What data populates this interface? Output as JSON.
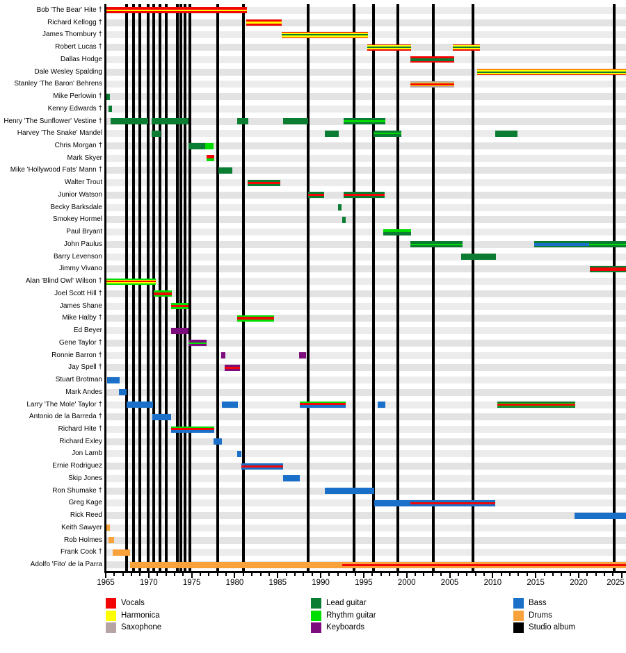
{
  "chart_data": {
    "type": "timeline",
    "x_axis": {
      "start": 1965,
      "end": 2025.5,
      "first_label": 1965,
      "last_label": 2025,
      "label_interval": 5,
      "minor_tick_interval": 1
    },
    "roles": {
      "vocals": {
        "label": "Vocals",
        "color": "#f10505"
      },
      "harmonica": {
        "label": "Harmonica",
        "color": "#ffff00"
      },
      "saxophone": {
        "label": "Saxophone",
        "color": "#b7a4a4"
      },
      "lead_guitar": {
        "label": "Lead guitar",
        "color": "#0b7d33"
      },
      "rhythm_guitar": {
        "label": "Rhythm guitar",
        "color": "#00dd00"
      },
      "keyboards": {
        "label": "Keyboards",
        "color": "#7d0c7d"
      },
      "bass": {
        "label": "Bass",
        "color": "#1a70c8"
      },
      "drums": {
        "label": "Drums",
        "color": "#f9a13a"
      },
      "studio_album": {
        "label": "Studio album",
        "color": "#000000"
      }
    },
    "legend": {
      "columns": [
        [
          "vocals",
          "harmonica",
          "saxophone"
        ],
        [
          "lead_guitar",
          "rhythm_guitar",
          "keyboards"
        ],
        [
          "bass",
          "drums",
          "studio_album"
        ]
      ]
    },
    "albums": [
      1967.4,
      1968.2,
      1969.0,
      1969.9,
      1970.6,
      1971.3,
      1972.0,
      1973.3,
      1973.7,
      1974.2,
      1974.8,
      1978.0,
      1981.0,
      1988.5,
      1993.9,
      1996.1,
      1999.0,
      2003.1,
      2007.7,
      2024.1
    ],
    "members": [
      {
        "name": "Bob 'The Bear' Hite †",
        "bars": [
          {
            "start": 1965.0,
            "end": 1981.4,
            "roles": [
              "vocals",
              "harmonica",
              "vocals"
            ],
            "w": [
              1.2,
              1,
              1.2
            ]
          }
        ]
      },
      {
        "name": "Richard Kellogg †",
        "bars": [
          {
            "start": 1981.3,
            "end": 1985.5,
            "roles": [
              "vocals",
              "harmonica",
              "vocals"
            ],
            "w": [
              1,
              1.2,
              1
            ]
          }
        ]
      },
      {
        "name": "James Thornbury †",
        "bars": [
          {
            "start": 1985.5,
            "end": 1995.5,
            "roles": [
              "vocals",
              "harmonica",
              "lead_guitar",
              "harmonica",
              "vocals"
            ],
            "w": [
              0.8,
              1.6,
              1.4,
              1.6,
              0.8
            ]
          }
        ]
      },
      {
        "name": "Robert Lucas †",
        "bars": [
          {
            "start": 1995.4,
            "end": 2000.5,
            "roles": [
              "vocals",
              "harmonica",
              "lead_guitar",
              "harmonica",
              "vocals"
            ],
            "w": [
              0.8,
              1.6,
              1.4,
              1.6,
              0.8
            ]
          },
          {
            "start": 2005.4,
            "end": 2008.5,
            "roles": [
              "vocals",
              "harmonica",
              "lead_guitar",
              "harmonica",
              "vocals"
            ],
            "w": [
              0.8,
              1.6,
              1.4,
              1.6,
              0.8
            ]
          }
        ]
      },
      {
        "name": "Dallas Hodge",
        "bars": [
          {
            "start": 2000.4,
            "end": 2005.5,
            "roles": [
              "vocals",
              "lead_guitar",
              "vocals"
            ],
            "w": [
              0.9,
              1.8,
              0.9
            ]
          }
        ]
      },
      {
        "name": "Dale Wesley Spalding",
        "bars": [
          {
            "start": 2008.2,
            "end": 2025.5,
            "roles": [
              "vocals",
              "harmonica",
              "lead_guitar",
              "harmonica",
              "vocals"
            ],
            "w": [
              0.8,
              1.6,
              1.4,
              1.6,
              0.8
            ]
          }
        ]
      },
      {
        "name": "Stanley 'The Baron' Behrens",
        "bars": [
          {
            "start": 2000.4,
            "end": 2005.5,
            "roles": [
              "saxophone",
              "harmonica",
              "vocals",
              "harmonica",
              "saxophone"
            ],
            "w": [
              1,
              0.9,
              1.4,
              0.9,
              1
            ]
          }
        ]
      },
      {
        "name": "Mike Perlowin †",
        "bars": [
          {
            "start": 1965.0,
            "end": 1965.45,
            "roles": [
              "lead_guitar"
            ]
          }
        ]
      },
      {
        "name": "Kenny Edwards †",
        "bars": [
          {
            "start": 1965.3,
            "end": 1965.75,
            "roles": [
              "lead_guitar"
            ]
          }
        ]
      },
      {
        "name": "Henry 'The Sunflower' Vestine †",
        "bars": [
          {
            "start": 1965.6,
            "end": 1969.9,
            "roles": [
              "lead_guitar"
            ]
          },
          {
            "start": 1970.3,
            "end": 1974.6,
            "roles": [
              "lead_guitar"
            ]
          },
          {
            "start": 1980.3,
            "end": 1981.6,
            "roles": [
              "lead_guitar"
            ]
          },
          {
            "start": 1985.6,
            "end": 1988.5,
            "roles": [
              "lead_guitar"
            ]
          },
          {
            "start": 1992.7,
            "end": 1997.5,
            "roles": [
              "lead_guitar",
              "rhythm_guitar",
              "lead_guitar"
            ],
            "w": [
              1.3,
              0.8,
              1.3
            ]
          }
        ]
      },
      {
        "name": "Harvey 'The Snake' Mandel",
        "bars": [
          {
            "start": 1970.3,
            "end": 1971.4,
            "roles": [
              "lead_guitar"
            ]
          },
          {
            "start": 1990.5,
            "end": 1992.1,
            "roles": [
              "lead_guitar"
            ]
          },
          {
            "start": 1996.1,
            "end": 1999.4,
            "roles": [
              "lead_guitar",
              "rhythm_guitar",
              "lead_guitar"
            ],
            "w": [
              1.3,
              0.8,
              1.3
            ]
          },
          {
            "start": 2010.3,
            "end": 2012.9,
            "roles": [
              "lead_guitar"
            ]
          }
        ]
      },
      {
        "name": "Chris Morgan †",
        "bars": [
          {
            "start": 1974.6,
            "end": 1976.6,
            "roles": [
              "lead_guitar"
            ]
          },
          {
            "start": 1976.6,
            "end": 1977.5,
            "roles": [
              "rhythm_guitar"
            ]
          }
        ]
      },
      {
        "name": "Mark Skyer",
        "bars": [
          {
            "start": 1976.7,
            "end": 1977.6,
            "roles": [
              "vocals",
              "rhythm_guitar"
            ]
          }
        ]
      },
      {
        "name": "Mike 'Hollywood Fats' Mann †",
        "bars": [
          {
            "start": 1978.1,
            "end": 1979.7,
            "roles": [
              "lead_guitar"
            ]
          }
        ]
      },
      {
        "name": "Walter Trout",
        "bars": [
          {
            "start": 1981.5,
            "end": 1985.3,
            "roles": [
              "lead_guitar",
              "vocals",
              "lead_guitar"
            ]
          }
        ]
      },
      {
        "name": "Junior Watson",
        "bars": [
          {
            "start": 1988.5,
            "end": 1990.4,
            "roles": [
              "lead_guitar",
              "vocals",
              "lead_guitar"
            ]
          },
          {
            "start": 1992.7,
            "end": 1997.4,
            "roles": [
              "lead_guitar",
              "vocals",
              "lead_guitar"
            ]
          }
        ]
      },
      {
        "name": "Becky Barksdale",
        "bars": [
          {
            "start": 1992.0,
            "end": 1992.45,
            "roles": [
              "lead_guitar"
            ]
          }
        ]
      },
      {
        "name": "Smokey Hormel",
        "bars": [
          {
            "start": 1992.5,
            "end": 1992.9,
            "roles": [
              "lead_guitar"
            ]
          }
        ]
      },
      {
        "name": "Paul Bryant",
        "bars": [
          {
            "start": 1997.3,
            "end": 2000.5,
            "roles": [
              "rhythm_guitar",
              "lead_guitar"
            ],
            "w": [
              1,
              1.3
            ]
          }
        ]
      },
      {
        "name": "John Paulus",
        "bars": [
          {
            "start": 2000.4,
            "end": 2006.5,
            "roles": [
              "lead_guitar",
              "rhythm_guitar",
              "lead_guitar"
            ],
            "w": [
              1.3,
              0.8,
              1.3
            ]
          },
          {
            "start": 2014.8,
            "end": 2021.2,
            "roles": [
              "lead_guitar",
              "bass",
              "lead_guitar"
            ],
            "w": [
              1,
              1.1,
              1
            ]
          },
          {
            "start": 2021.2,
            "end": 2025.5,
            "roles": [
              "lead_guitar",
              "rhythm_guitar",
              "lead_guitar"
            ],
            "w": [
              1.3,
              0.8,
              1.3
            ]
          }
        ]
      },
      {
        "name": "Barry Levenson",
        "bars": [
          {
            "start": 2006.3,
            "end": 2010.4,
            "roles": [
              "lead_guitar"
            ]
          }
        ]
      },
      {
        "name": "Jimmy Vivano",
        "bars": [
          {
            "start": 2021.3,
            "end": 2025.5,
            "roles": [
              "lead_guitar",
              "vocals",
              "lead_guitar"
            ],
            "w": [
              0.8,
              1.8,
              0.8
            ]
          }
        ]
      },
      {
        "name": "Alan 'Blind Owl' Wilson †",
        "bars": [
          {
            "start": 1965.0,
            "end": 1970.8,
            "roles": [
              "rhythm_guitar",
              "harmonica",
              "vocals",
              "harmonica",
              "rhythm_guitar"
            ],
            "w": [
              1.4,
              0.9,
              1.6,
              0.9,
              1.4
            ]
          }
        ]
      },
      {
        "name": "Joel Scott Hill †",
        "bars": [
          {
            "start": 1970.6,
            "end": 1972.7,
            "roles": [
              "rhythm_guitar",
              "vocals",
              "rhythm_guitar"
            ],
            "w": [
              0.9,
              1.3,
              0.9
            ]
          }
        ]
      },
      {
        "name": "James Shane",
        "bars": [
          {
            "start": 1972.6,
            "end": 1974.6,
            "roles": [
              "rhythm_guitar",
              "vocals",
              "rhythm_guitar"
            ],
            "w": [
              0.9,
              1.3,
              0.9
            ]
          }
        ]
      },
      {
        "name": "Mike Halby †",
        "bars": [
          {
            "start": 1980.3,
            "end": 1984.6,
            "roles": [
              "rhythm_guitar",
              "vocals",
              "rhythm_guitar"
            ],
            "w": [
              0.9,
              1.3,
              0.9
            ]
          }
        ]
      },
      {
        "name": "Ed Beyer",
        "bars": [
          {
            "start": 1972.6,
            "end": 1974.6,
            "roles": [
              "keyboards"
            ]
          }
        ]
      },
      {
        "name": "Gene Taylor †",
        "bars": [
          {
            "start": 1974.6,
            "end": 1976.7,
            "roles": [
              "keyboards",
              "rhythm_guitar",
              "keyboards"
            ],
            "w": [
              1.3,
              0.8,
              1.3
            ]
          }
        ]
      },
      {
        "name": "Ronnie Barron †",
        "bars": [
          {
            "start": 1978.4,
            "end": 1978.9,
            "roles": [
              "keyboards"
            ]
          },
          {
            "start": 1987.5,
            "end": 1988.3,
            "roles": [
              "keyboards"
            ]
          }
        ]
      },
      {
        "name": "Jay Spell †",
        "bars": [
          {
            "start": 1978.8,
            "end": 1980.6,
            "roles": [
              "keyboards",
              "vocals",
              "keyboards"
            ],
            "w": [
              1,
              1.3,
              1
            ]
          }
        ]
      },
      {
        "name": "Stuart Brotman",
        "bars": [
          {
            "start": 1965.2,
            "end": 1966.6,
            "roles": [
              "bass"
            ]
          }
        ]
      },
      {
        "name": "Mark Andes",
        "bars": [
          {
            "start": 1966.5,
            "end": 1967.4,
            "roles": [
              "bass"
            ]
          }
        ]
      },
      {
        "name": "Larry 'The Mole' Taylor †",
        "bars": [
          {
            "start": 1967.4,
            "end": 1970.5,
            "roles": [
              "bass"
            ]
          },
          {
            "start": 1978.5,
            "end": 1980.4,
            "roles": [
              "bass"
            ]
          },
          {
            "start": 1987.6,
            "end": 1992.9,
            "roles": [
              "rhythm_guitar",
              "vocals",
              "bass"
            ],
            "w": [
              0.8,
              1,
              1.4
            ]
          },
          {
            "start": 1996.6,
            "end": 1997.5,
            "roles": [
              "bass"
            ]
          },
          {
            "start": 2010.5,
            "end": 2019.6,
            "roles": [
              "lead_guitar",
              "rhythm_guitar",
              "vocals",
              "rhythm_guitar",
              "lead_guitar"
            ],
            "w": [
              1.3,
              0.6,
              1.5,
              0.6,
              1.3
            ]
          }
        ]
      },
      {
        "name": "Antonio de la Barreda †",
        "bars": [
          {
            "start": 1970.4,
            "end": 1972.6,
            "roles": [
              "bass"
            ]
          }
        ]
      },
      {
        "name": "Richard Hite †",
        "bars": [
          {
            "start": 1972.6,
            "end": 1977.6,
            "roles": [
              "rhythm_guitar",
              "vocals",
              "bass"
            ],
            "w": [
              0.8,
              1,
              1.4
            ]
          }
        ]
      },
      {
        "name": "Richard Exley",
        "bars": [
          {
            "start": 1977.5,
            "end": 1978.5,
            "roles": [
              "bass"
            ]
          }
        ]
      },
      {
        "name": "Jon Lamb",
        "bars": [
          {
            "start": 1980.3,
            "end": 1980.8,
            "roles": [
              "bass"
            ]
          }
        ]
      },
      {
        "name": "Ernie Rodriguez",
        "bars": [
          {
            "start": 1980.8,
            "end": 1985.6,
            "roles": [
              "bass",
              "vocals",
              "bass"
            ],
            "w": [
              1.1,
              1,
              1.1
            ]
          }
        ]
      },
      {
        "name": "Skip Jones",
        "bars": [
          {
            "start": 1985.6,
            "end": 1987.6,
            "roles": [
              "bass"
            ]
          }
        ]
      },
      {
        "name": "Ron Shumake †",
        "bars": [
          {
            "start": 1990.5,
            "end": 1996.2,
            "roles": [
              "bass"
            ]
          }
        ]
      },
      {
        "name": "Greg Kage",
        "bars": [
          {
            "start": 1996.2,
            "end": 2000.4,
            "roles": [
              "bass"
            ]
          },
          {
            "start": 2000.4,
            "end": 2010.3,
            "roles": [
              "bass",
              "vocals",
              "bass"
            ],
            "w": [
              1.1,
              1,
              1.1
            ]
          }
        ]
      },
      {
        "name": "Rick Reed",
        "bars": [
          {
            "start": 2019.5,
            "end": 2025.5,
            "roles": [
              "bass"
            ]
          }
        ]
      },
      {
        "name": "Keith Sawyer",
        "bars": [
          {
            "start": 1965.0,
            "end": 1965.45,
            "roles": [
              "drums"
            ]
          }
        ]
      },
      {
        "name": "Rob Holmes",
        "bars": [
          {
            "start": 1965.35,
            "end": 1965.95,
            "roles": [
              "drums"
            ]
          }
        ]
      },
      {
        "name": "Frank Cook †",
        "bars": [
          {
            "start": 1965.8,
            "end": 1967.8,
            "roles": [
              "drums"
            ]
          }
        ]
      },
      {
        "name": "Adolfo 'Fito' de la Parra",
        "bars": [
          {
            "start": 1967.8,
            "end": 1992.5,
            "roles": [
              "drums"
            ]
          },
          {
            "start": 1992.5,
            "end": 2025.5,
            "roles": [
              "drums",
              "vocals",
              "drums"
            ],
            "w": [
              1.1,
              1,
              1.1
            ]
          }
        ]
      }
    ]
  }
}
